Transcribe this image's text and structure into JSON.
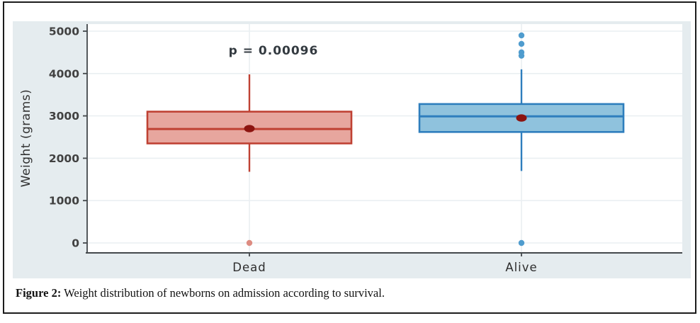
{
  "figure": {
    "caption_label": "Figure 2:",
    "caption_text": "Weight distribution of newborns on admission according to survival."
  },
  "chart_data": {
    "type": "boxplot",
    "title": "",
    "xlabel": "",
    "ylabel": "Weight (grams)",
    "ylim": [
      0,
      5000
    ],
    "yticks": [
      0,
      1000,
      2000,
      3000,
      4000,
      5000
    ],
    "categories": [
      "Dead",
      "Alive"
    ],
    "annotation": "p = 0.00096",
    "grid": true,
    "legend": "none",
    "series": [
      {
        "name": "Dead",
        "whisker_low": 1680,
        "q1": 2350,
        "median": 2690,
        "q3": 3100,
        "whisker_high": 3980,
        "mean": 2700,
        "outliers": [
          0
        ],
        "fill": "#e7a69e",
        "stroke": "#bf4133",
        "mean_color": "#8c1410",
        "outlier_color": "#dd8c81"
      },
      {
        "name": "Alive",
        "whisker_low": 1700,
        "q1": 2620,
        "median": 2990,
        "q3": 3280,
        "whisker_high": 4100,
        "mean": 2950,
        "outliers": [
          0,
          4420,
          4500,
          4700,
          4900
        ],
        "fill": "#8fc2dd",
        "stroke": "#2e7ebd",
        "mean_color": "#8c1410",
        "outlier_color": "#4f9cce"
      }
    ],
    "colors": {
      "panel_bg": "#e5ecef",
      "plot_bg": "#ffffff",
      "gridline": "#eaeff2",
      "axis_line": "#43484b",
      "tick_text": "#414141",
      "frame_border": "#1c1c1c"
    }
  }
}
